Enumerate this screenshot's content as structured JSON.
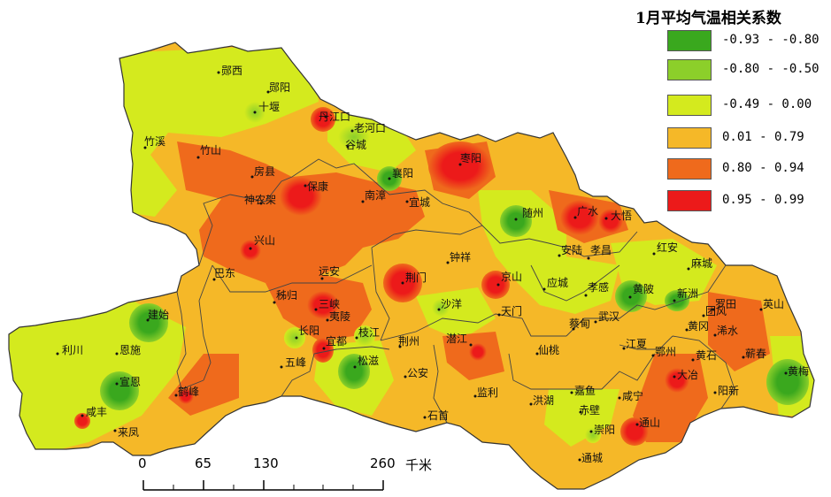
{
  "legend": {
    "title": "1月平均气温相关系数",
    "items": [
      {
        "label": "-0.93 - -0.80",
        "color": "#3aa81e"
      },
      {
        "label": "-0.80 - -0.50",
        "color": "#8ccf2a"
      },
      {
        "label": "-0.49 - 0.00",
        "color": "#d4ea1e"
      },
      {
        "label": "0.01 - 0.79",
        "color": "#f5b828"
      },
      {
        "label": "0.80 - 0.94",
        "color": "#ef6a1c"
      },
      {
        "label": "0.95 - 0.99",
        "color": "#ec1a1a"
      }
    ]
  },
  "scale": {
    "ticks": [
      "0",
      "65",
      "130",
      "260"
    ],
    "unit": "千米"
  },
  "cities": [
    {
      "name": "郧西"
    },
    {
      "name": "郧阳"
    },
    {
      "name": "十堰"
    },
    {
      "name": "丹江口"
    },
    {
      "name": "老河口"
    },
    {
      "name": "谷城"
    },
    {
      "name": "竹溪"
    },
    {
      "name": "竹山"
    },
    {
      "name": "房县"
    },
    {
      "name": "保康"
    },
    {
      "name": "南漳"
    },
    {
      "name": "襄阳"
    },
    {
      "name": "宜城"
    },
    {
      "name": "枣阳"
    },
    {
      "name": "神农架"
    },
    {
      "name": "兴山"
    },
    {
      "name": "随州"
    },
    {
      "name": "广水"
    },
    {
      "name": "大悟"
    },
    {
      "name": "安陆"
    },
    {
      "name": "孝昌"
    },
    {
      "name": "红安"
    },
    {
      "name": "麻城"
    },
    {
      "name": "钟祥"
    },
    {
      "name": "京山"
    },
    {
      "name": "巴东"
    },
    {
      "name": "远安"
    },
    {
      "name": "荆门"
    },
    {
      "name": "应城"
    },
    {
      "name": "孝感"
    },
    {
      "name": "黄陂"
    },
    {
      "name": "新洲"
    },
    {
      "name": "秭归"
    },
    {
      "name": "三峡"
    },
    {
      "name": "夷陵"
    },
    {
      "name": "沙洋"
    },
    {
      "name": "天门"
    },
    {
      "name": "罗田"
    },
    {
      "name": "英山"
    },
    {
      "name": "建始"
    },
    {
      "name": "长阳"
    },
    {
      "name": "宜都"
    },
    {
      "name": "枝江"
    },
    {
      "name": "荆州"
    },
    {
      "name": "潜江"
    },
    {
      "name": "蔡甸"
    },
    {
      "name": "武汉"
    },
    {
      "name": "团风"
    },
    {
      "name": "黄冈"
    },
    {
      "name": "浠水"
    },
    {
      "name": "利川"
    },
    {
      "name": "恩施"
    },
    {
      "name": "五峰"
    },
    {
      "name": "松滋"
    },
    {
      "name": "公安"
    },
    {
      "name": "仙桃"
    },
    {
      "name": "江夏"
    },
    {
      "name": "鄂州"
    },
    {
      "name": "黄石"
    },
    {
      "name": "蕲春"
    },
    {
      "name": "宣恩"
    },
    {
      "name": "鹤峰"
    },
    {
      "name": "监利"
    },
    {
      "name": "洪湖"
    },
    {
      "name": "嘉鱼"
    },
    {
      "name": "咸宁"
    },
    {
      "name": "大冶"
    },
    {
      "name": "阳新"
    },
    {
      "name": "黄梅"
    },
    {
      "name": "咸丰"
    },
    {
      "name": "来凤"
    },
    {
      "name": "石首"
    },
    {
      "name": "赤壁"
    },
    {
      "name": "崇阳"
    },
    {
      "name": "通山"
    },
    {
      "name": "通城"
    }
  ]
}
